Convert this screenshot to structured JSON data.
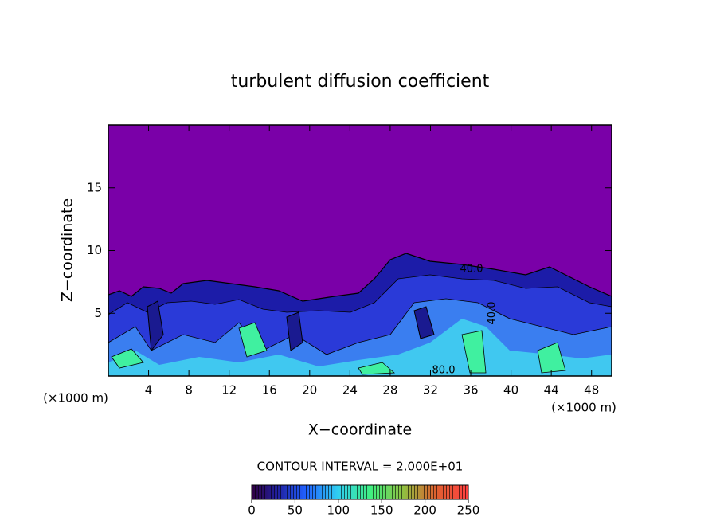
{
  "chart_data": {
    "type": "contour",
    "title": "turbulent diffusion coefficient",
    "xlabel": "X−coordinate",
    "ylabel": "Z−coordinate",
    "x_unit": "(×1000 m)",
    "xlim": [
      0,
      50
    ],
    "xticks": [
      4,
      8,
      12,
      16,
      20,
      24,
      28,
      32,
      36,
      40,
      44,
      48
    ],
    "ylim": [
      0,
      20
    ],
    "yticks": [
      5,
      10,
      15
    ],
    "contour_labels": [
      "40.0",
      "40.0",
      "80.0"
    ],
    "contour_interval": "CONTOUR INTERVAL = 2.000E+01",
    "colorbar": {
      "lim": [
        0,
        250
      ],
      "ticks": [
        0,
        50,
        100,
        150,
        200,
        250
      ]
    }
  }
}
